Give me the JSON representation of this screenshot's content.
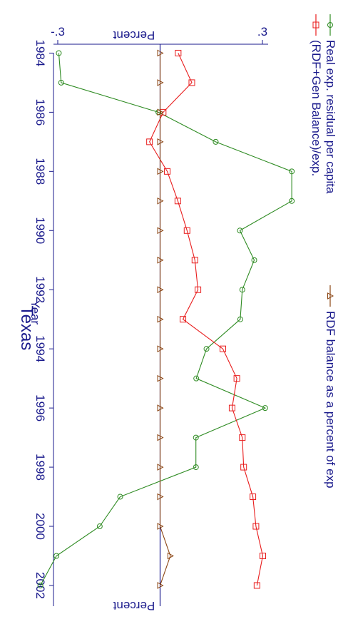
{
  "chart_data": {
    "type": "line",
    "title": "Texas",
    "xlabel": "Year",
    "ylabel": "Percent",
    "ylabel_right": "Percent",
    "xlim": [
      1983.7,
      2002.7
    ],
    "ylim": [
      -0.3,
      0.3
    ],
    "x_ticks": [
      1984,
      1986,
      1988,
      1990,
      1992,
      1994,
      1996,
      1998,
      2000,
      2002
    ],
    "y_ticks": [
      -0.3,
      0.3
    ],
    "y_tick_labels": [
      "-.3",
      ".3"
    ],
    "x": [
      1984,
      1985,
      1986,
      1987,
      1988,
      1989,
      1990,
      1991,
      1992,
      1993,
      1994,
      1995,
      1996,
      1997,
      1998,
      1999,
      2000,
      2001,
      2002
    ],
    "series": [
      {
        "name": "Real exp. residual per capita",
        "color": "#2e8b22",
        "marker": "circle",
        "values": [
          -0.297,
          -0.29,
          -0.005,
          0.163,
          0.386,
          0.386,
          0.234,
          0.276,
          0.241,
          0.235,
          0.136,
          0.106,
          0.308,
          0.105,
          0.105,
          -0.117,
          -0.177,
          -0.304,
          -0.351
        ]
      },
      {
        "name": "(RDF+Gen Balance)/exp.",
        "color": "#e81c1c",
        "marker": "square",
        "values": [
          0.053,
          0.093,
          0.009,
          -0.031,
          0.021,
          0.052,
          0.079,
          0.102,
          0.111,
          0.067,
          0.184,
          0.225,
          0.211,
          0.241,
          0.245,
          0.272,
          0.281,
          0.301,
          0.284
        ]
      },
      {
        "name": "RDF balance as a percent of exp",
        "color": "#8b4513",
        "marker": "triangle",
        "values": [
          0.0,
          0.0,
          0.0,
          0.0,
          0.0,
          0.0,
          0.0,
          0.0,
          0.0,
          0.0,
          0.0,
          0.0,
          0.0,
          0.0,
          0.0,
          0.0,
          0.0,
          0.03,
          0.0
        ]
      }
    ],
    "reference_line": {
      "y": 0,
      "color": "#1a1a8c"
    },
    "legend_position": "top"
  }
}
